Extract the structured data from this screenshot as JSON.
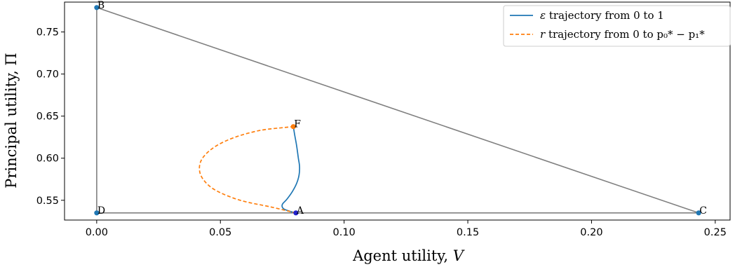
{
  "chart_data": {
    "type": "line",
    "title": "",
    "xlabel": "Agent utility, V",
    "ylabel": "Principal utility, Π",
    "xlim": [
      -0.013,
      0.256
    ],
    "ylim": [
      0.5265,
      0.7855
    ],
    "xticks": [
      0.0,
      0.05,
      0.1,
      0.15,
      0.2,
      0.25
    ],
    "xtick_labels": [
      "0.00",
      "0.05",
      "0.10",
      "0.15",
      "0.20",
      "0.25"
    ],
    "yticks": [
      0.55,
      0.6,
      0.65,
      0.7,
      0.75
    ],
    "ytick_labels": [
      "0.55",
      "0.60",
      "0.65",
      "0.70",
      "0.75"
    ],
    "grid": false,
    "legend_position": "top-right",
    "colors": {
      "epsilon": "#1f77b4",
      "r": "#ff7f0e",
      "boundary": "#808080",
      "point": "#1f77b4",
      "point_a": "#2222cc",
      "point_f": "#ff7f0e"
    },
    "boundary": {
      "name": "",
      "x": [
        0.0,
        0.0,
        0.2433,
        0.0
      ],
      "y": [
        0.535,
        0.779,
        0.535,
        0.535
      ]
    },
    "points": [
      {
        "label": "B",
        "x": 0.0,
        "y": 0.779
      },
      {
        "label": "D",
        "x": 0.0,
        "y": 0.535
      },
      {
        "label": "C",
        "x": 0.2433,
        "y": 0.535
      },
      {
        "label": "A",
        "x": 0.0805,
        "y": 0.535
      },
      {
        "label": "F",
        "x": 0.0795,
        "y": 0.6375
      }
    ],
    "series": [
      {
        "name": "ε trajectory from 0 to 1",
        "style": "solid",
        "x": [
          0.0805,
          0.078,
          0.0755,
          0.075,
          0.0768,
          0.079,
          0.0808,
          0.0818,
          0.082,
          0.0815,
          0.0808,
          0.08,
          0.0795
        ],
        "y": [
          0.535,
          0.537,
          0.54,
          0.545,
          0.551,
          0.56,
          0.57,
          0.58,
          0.59,
          0.6,
          0.615,
          0.628,
          0.6375
        ]
      },
      {
        "name": "r trajectory from 0 to p₀* − p₁*",
        "style": "dashed",
        "x": [
          0.0805,
          0.0705,
          0.058,
          0.048,
          0.043,
          0.0415,
          0.043,
          0.048,
          0.056,
          0.066,
          0.076,
          0.0795
        ],
        "y": [
          0.535,
          0.542,
          0.55,
          0.562,
          0.575,
          0.588,
          0.601,
          0.614,
          0.625,
          0.633,
          0.6365,
          0.6375
        ]
      }
    ]
  }
}
